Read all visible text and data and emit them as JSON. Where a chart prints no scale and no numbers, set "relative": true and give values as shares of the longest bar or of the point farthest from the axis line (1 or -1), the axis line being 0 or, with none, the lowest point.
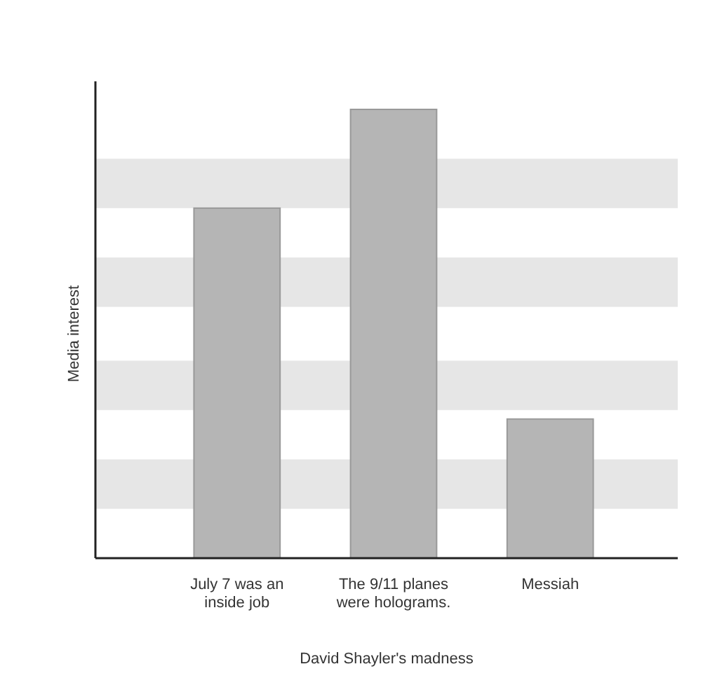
{
  "chart_data": {
    "type": "bar",
    "relative": true,
    "categories": [
      "July 7 was an inside job",
      "The 9/11 planes were holograms.",
      "Messiah"
    ],
    "values": [
      0.78,
      1,
      0.31
    ],
    "color": "#b5b5b5",
    "xlabel": "David Shayler's madness",
    "ylabel": "Media interest",
    "bands": [
      {
        "axis": "y",
        "from": 0.11,
        "to": 0.22,
        "color": "#e6e6e6"
      },
      {
        "axis": "y",
        "from": 0.33,
        "to": 0.44,
        "color": "#e6e6e6"
      },
      {
        "axis": "y",
        "from": 0.56,
        "to": 0.67,
        "color": "#e6e6e6"
      },
      {
        "axis": "y",
        "from": 0.78,
        "to": 0.89,
        "color": "#e6e6e6"
      }
    ]
  }
}
